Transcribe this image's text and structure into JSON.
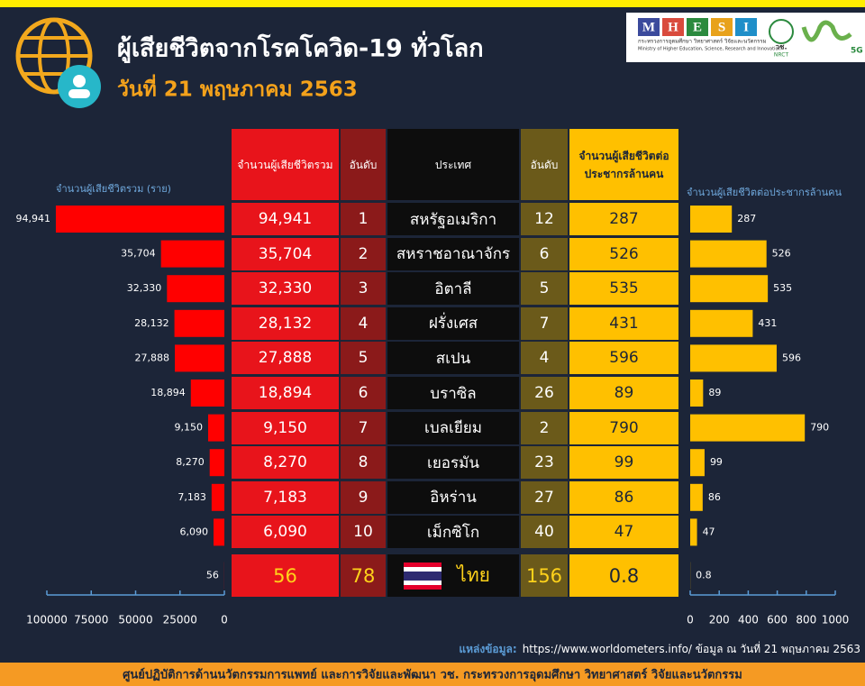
{
  "header": {
    "title": "ผู้เสียชีวิตจากโรคโควิด-19 ทั่วโลก",
    "subtitle": "วันที่ 21 พฤษภาคม 2563",
    "logo": {
      "letters": [
        "M",
        "H",
        "E",
        "S",
        "I"
      ],
      "ministry_th": "กระทรวงการอุดมศึกษา วิทยาศาสตร์ วิจัยและนวัตกรรม",
      "ministry_en": "Ministry of Higher Education, Science, Research and Innovation",
      "nrct_th": "วช.",
      "nrct_en": "NRCT",
      "g5": "5G"
    }
  },
  "table": {
    "headers": [
      "จำนวนผู้เสียชีวิตรวม",
      "อันดับ",
      "ประเทศ",
      "อันดับ",
      "จำนวนผู้เสียชีวิตต่อประชากรล้านคน"
    ],
    "rows": [
      [
        "94,941",
        "1",
        "สหรัฐอเมริกา",
        "12",
        "287"
      ],
      [
        "35,704",
        "2",
        "สหราชอาณาจักร",
        "6",
        "526"
      ],
      [
        "32,330",
        "3",
        "อิตาลี",
        "5",
        "535"
      ],
      [
        "28,132",
        "4",
        "ฝรั่งเศส",
        "7",
        "431"
      ],
      [
        "27,888",
        "5",
        "สเปน",
        "4",
        "596"
      ],
      [
        "18,894",
        "6",
        "บราซิล",
        "26",
        "89"
      ],
      [
        "9,150",
        "7",
        "เบลเยียม",
        "2",
        "790"
      ],
      [
        "8,270",
        "8",
        "เยอรมัน",
        "23",
        "99"
      ],
      [
        "7,183",
        "9",
        "อิหร่าน",
        "27",
        "86"
      ],
      [
        "6,090",
        "10",
        "เม็กซิโก",
        "40",
        "47"
      ],
      [
        "56",
        "78",
        "ไทย",
        "156",
        "0.8"
      ]
    ]
  },
  "chart_data": [
    {
      "type": "bar",
      "horizontal": true,
      "reversed": true,
      "title": "จำนวนผู้เสียชีวิตรวม (ราย)",
      "color": "#ff0000",
      "values": [
        94941,
        35704,
        32330,
        28132,
        27888,
        18894,
        9150,
        8270,
        7183,
        6090,
        56
      ],
      "value_labels": [
        "94,941",
        "35,704",
        "32,330",
        "28,132",
        "27,888",
        "18,894",
        "9,150",
        "8,270",
        "7,183",
        "6,090",
        "56"
      ],
      "xlim": [
        0,
        100000
      ],
      "xticks": [
        100000,
        75000,
        50000,
        25000,
        0
      ]
    },
    {
      "type": "bar",
      "horizontal": true,
      "reversed": false,
      "title": "จำนวนผู้เสียชีวิตต่อประชากรล้านคน",
      "color": "#ffc000",
      "values": [
        287,
        526,
        535,
        431,
        596,
        89,
        790,
        99,
        86,
        47,
        0.8
      ],
      "xlim": [
        0,
        1000
      ],
      "xticks": [
        0,
        200,
        400,
        600,
        800,
        1000
      ]
    }
  ],
  "source": {
    "label": "แหล่งข้อมูล:",
    "text": "https://www.worldometers.info/ ข้อมูล ณ วันที่ 21 พฤษภาคม 2563"
  },
  "footer": "ศูนย์ปฏิบัติการด้านนวัตกรรมการแพทย์ และการวิจัยและพัฒนา วช.  กระทรวงการอุดมศึกษา วิทยาศาสตร์ วิจัยและนวัตกรรม"
}
